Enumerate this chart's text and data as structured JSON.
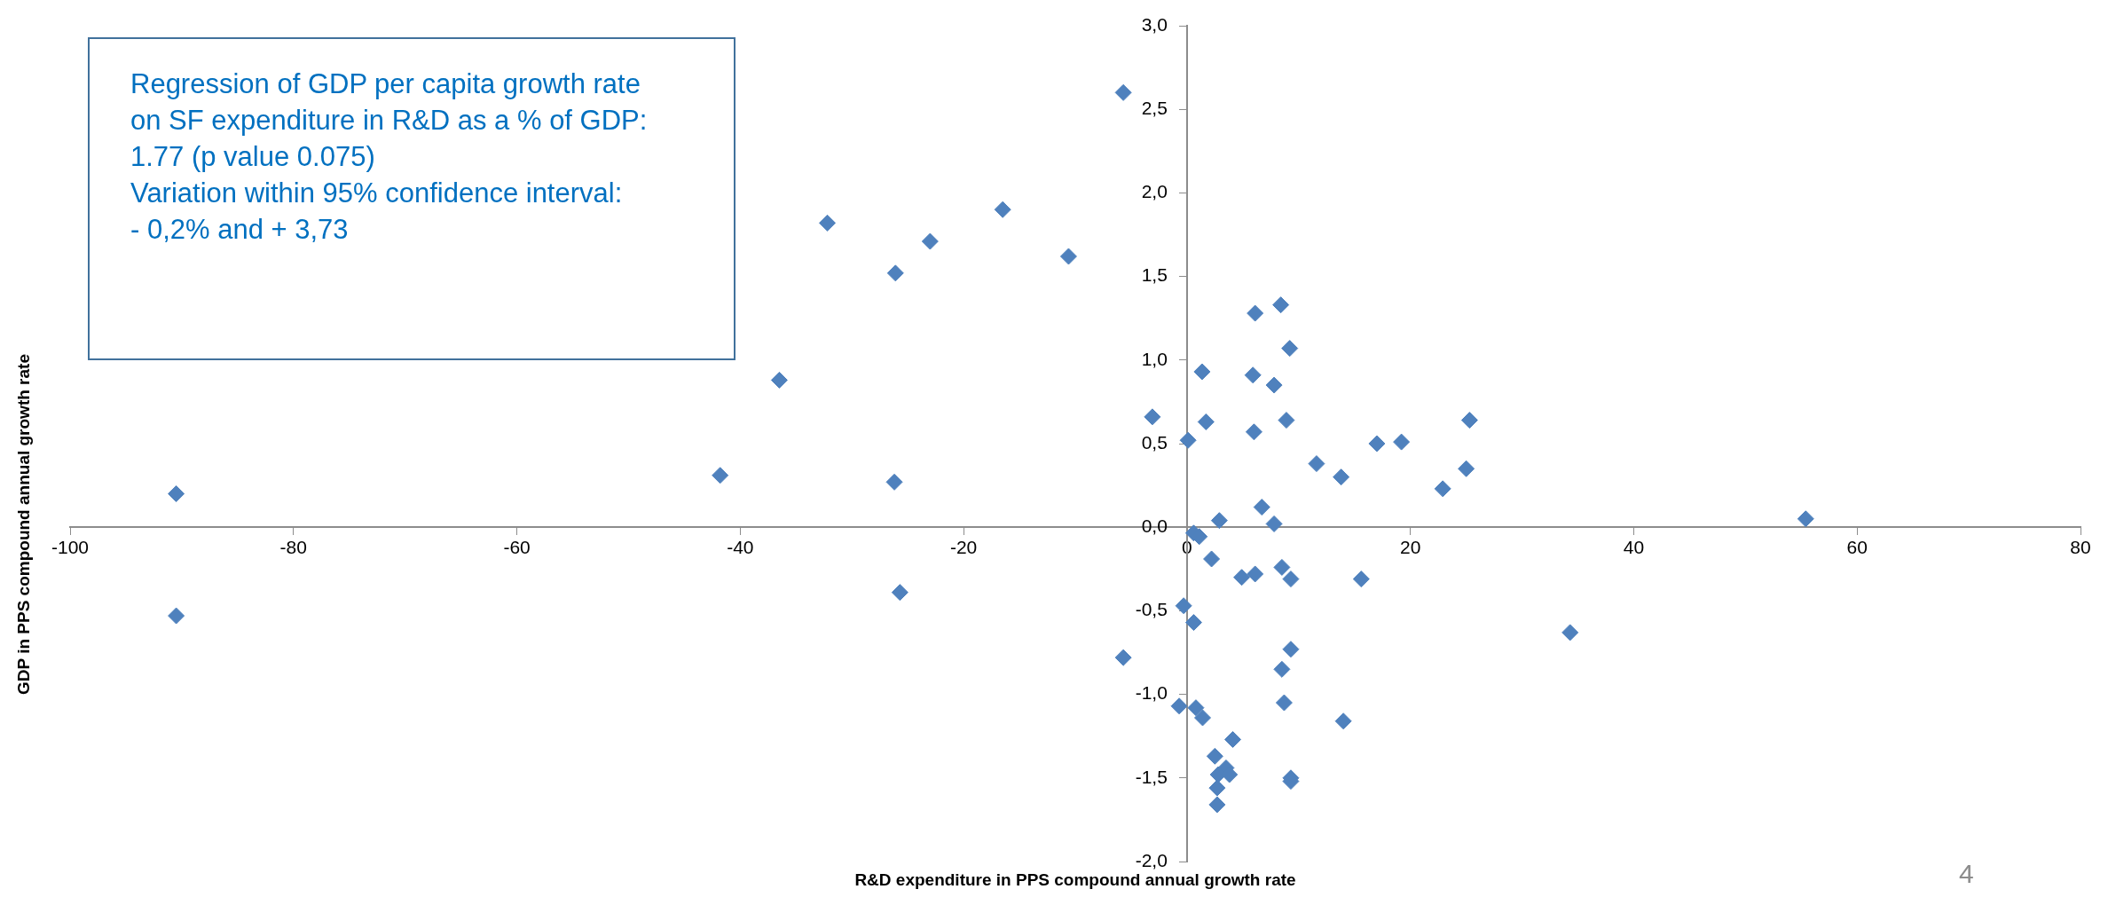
{
  "chart_data": {
    "type": "scatter",
    "xlabel": "R&D expenditure in PPS compound annual growth rate",
    "ylabel": "GDP in PPS compound annual growth rate",
    "annotations": [
      "Regression of GDP per capita growth rate\non SF expenditure in R&D as a % of GDP:\n1.77 (p value 0.075)\nVariation within 95% confidence interval:\n- 0,2% and + 3,73",
      "4"
    ],
    "x": [
      -90.5,
      -90.5,
      -41.8,
      -36.5,
      -32.2,
      -26.2,
      -26.1,
      -25.7,
      -23.0,
      -16.5,
      -10.6,
      -5.7,
      -5.7,
      1.35,
      6.1,
      8.4,
      9.2,
      5.9,
      7.8,
      -3.1,
      1.7,
      0.1,
      6.0,
      8.9,
      17.0,
      19.2,
      25.3,
      11.6,
      13.8,
      22.9,
      25.0,
      6.7,
      2.9,
      7.8,
      0.6,
      1.1,
      2.2,
      4.9,
      6.1,
      8.5,
      9.3,
      15.6,
      -0.3,
      0.6,
      9.3,
      8.5,
      -0.7,
      0.8,
      1.4,
      8.7,
      14.0,
      4.1,
      2.5,
      3.5,
      2.8,
      3.8,
      9.3,
      9.3,
      2.7,
      2.7,
      55.4,
      34.3
    ],
    "values": [
      0.2,
      -0.53,
      0.31,
      0.88,
      1.82,
      0.27,
      1.52,
      -0.39,
      1.71,
      1.9,
      1.62,
      2.6,
      -0.78,
      0.93,
      1.28,
      1.33,
      1.07,
      0.91,
      0.85,
      0.66,
      0.63,
      0.52,
      0.57,
      0.64,
      0.5,
      0.51,
      0.64,
      0.38,
      0.3,
      0.23,
      0.35,
      0.12,
      0.04,
      0.02,
      -0.035,
      -0.056,
      -0.19,
      -0.3,
      -0.28,
      -0.24,
      -0.31,
      -0.31,
      -0.47,
      -0.57,
      -0.73,
      -0.85,
      -1.07,
      -1.08,
      -1.14,
      -1.05,
      -1.16,
      -1.27,
      -1.37,
      -1.44,
      -1.48,
      -1.48,
      -1.5,
      -1.52,
      -1.56,
      -1.66,
      0.05,
      -0.63
    ],
    "color": "#4f81bd",
    "marker": "diamond",
    "grid": false,
    "legend": false,
    "xlim": [
      -100,
      80
    ],
    "xticks": [
      -100,
      -80,
      -60,
      -40,
      -20,
      0,
      20,
      40,
      60,
      80
    ],
    "ylim": [
      -2,
      3
    ],
    "yticks": [
      {
        "value": -2,
        "label": "-2,0"
      },
      {
        "value": -1.5,
        "label": "-1,5"
      },
      {
        "value": -1,
        "label": "-1,0"
      },
      {
        "value": -0.5,
        "label": "-0,5"
      },
      {
        "value": 0,
        "label": "0,0"
      },
      {
        "value": 0.5,
        "label": "0,5"
      },
      {
        "value": 1,
        "label": "1,0"
      },
      {
        "value": 1.5,
        "label": "1,5"
      },
      {
        "value": 2,
        "label": "2,0"
      },
      {
        "value": 2.5,
        "label": "2,5"
      },
      {
        "value": 3,
        "label": "3,0"
      }
    ]
  }
}
